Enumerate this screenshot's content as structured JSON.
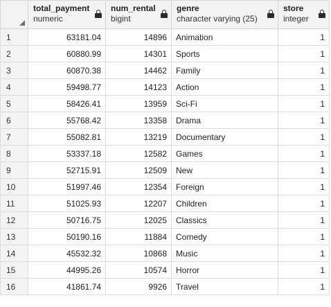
{
  "columns": [
    {
      "name": "total_payment",
      "type": "numeric"
    },
    {
      "name": "num_rental",
      "type": "bigint"
    },
    {
      "name": "genre",
      "type": "character varying (25)"
    },
    {
      "name": "store",
      "type": "integer"
    }
  ],
  "rows": [
    {
      "num": "1",
      "total_payment": "63181.04",
      "num_rental": "14896",
      "genre": "Animation",
      "store": "1"
    },
    {
      "num": "2",
      "total_payment": "60880.99",
      "num_rental": "14301",
      "genre": "Sports",
      "store": "1"
    },
    {
      "num": "3",
      "total_payment": "60870.38",
      "num_rental": "14462",
      "genre": "Family",
      "store": "1"
    },
    {
      "num": "4",
      "total_payment": "59498.77",
      "num_rental": "14123",
      "genre": "Action",
      "store": "1"
    },
    {
      "num": "5",
      "total_payment": "58426.41",
      "num_rental": "13959",
      "genre": "Sci-Fi",
      "store": "1"
    },
    {
      "num": "6",
      "total_payment": "55768.42",
      "num_rental": "13358",
      "genre": "Drama",
      "store": "1"
    },
    {
      "num": "7",
      "total_payment": "55082.81",
      "num_rental": "13219",
      "genre": "Documentary",
      "store": "1"
    },
    {
      "num": "8",
      "total_payment": "53337.18",
      "num_rental": "12582",
      "genre": "Games",
      "store": "1"
    },
    {
      "num": "9",
      "total_payment": "52715.91",
      "num_rental": "12509",
      "genre": "New",
      "store": "1"
    },
    {
      "num": "10",
      "total_payment": "51997.46",
      "num_rental": "12354",
      "genre": "Foreign",
      "store": "1"
    },
    {
      "num": "11",
      "total_payment": "51025.93",
      "num_rental": "12207",
      "genre": "Children",
      "store": "1"
    },
    {
      "num": "12",
      "total_payment": "50716.75",
      "num_rental": "12025",
      "genre": "Classics",
      "store": "1"
    },
    {
      "num": "13",
      "total_payment": "50190.16",
      "num_rental": "11884",
      "genre": "Comedy",
      "store": "1"
    },
    {
      "num": "14",
      "total_payment": "45532.32",
      "num_rental": "10868",
      "genre": "Music",
      "store": "1"
    },
    {
      "num": "15",
      "total_payment": "44995.26",
      "num_rental": "10574",
      "genre": "Horror",
      "store": "1"
    },
    {
      "num": "16",
      "total_payment": "41861.74",
      "num_rental": "9926",
      "genre": "Travel",
      "store": "1"
    }
  ],
  "icons": {
    "column_lock": "lock-icon",
    "corner": "select-all-corner"
  },
  "colors": {
    "header_bg": "#f3f3f3",
    "grid_line": "#dcdcdc"
  }
}
